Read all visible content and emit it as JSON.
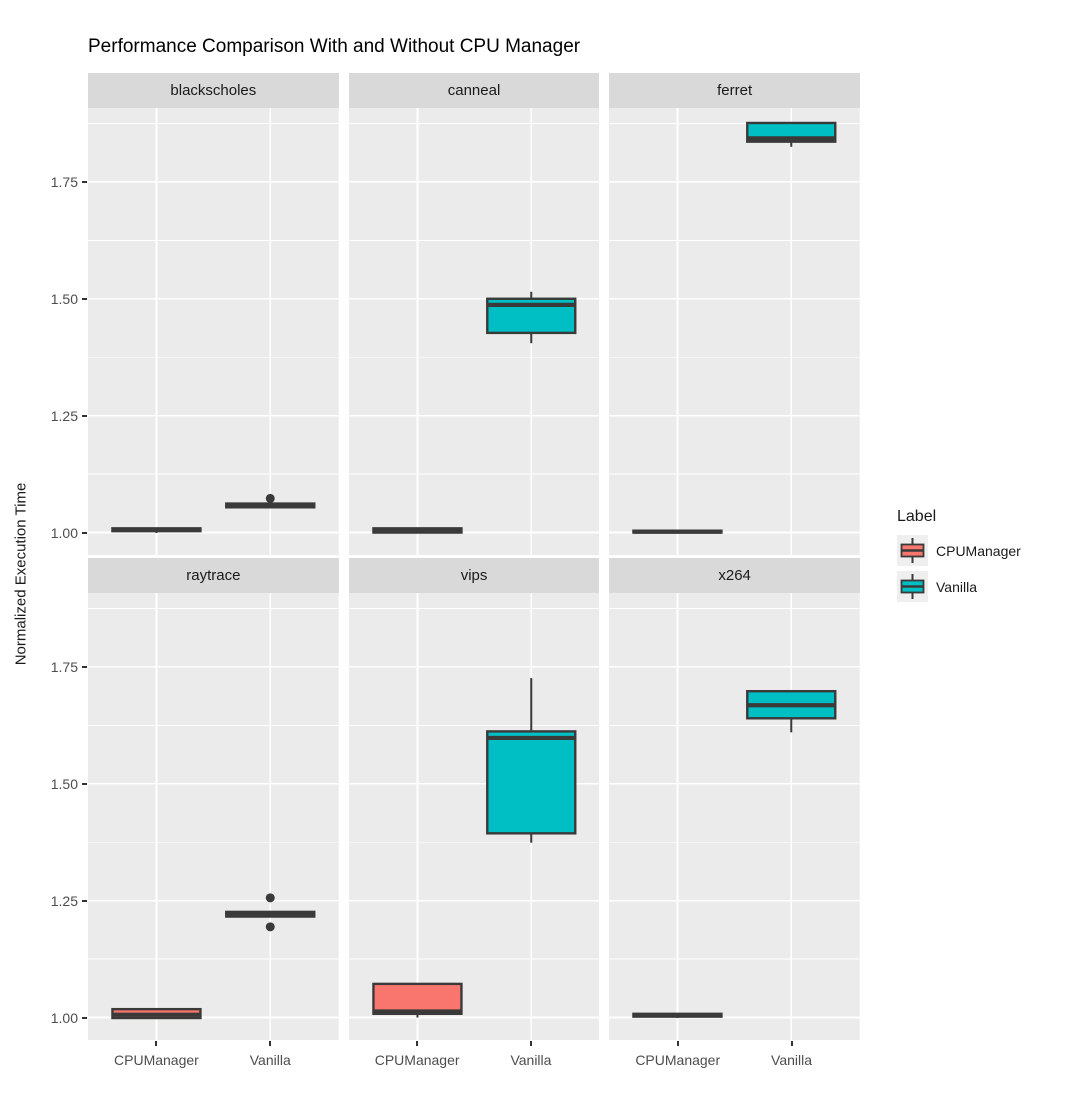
{
  "title": "Performance Comparison With and Without CPU Manager",
  "axes": {
    "y_label": "Normalized Execution Time",
    "y_ticks": [
      "1.00",
      "1.25",
      "1.50",
      "1.75"
    ],
    "x_categories": [
      "CPUManager",
      "Vanilla"
    ]
  },
  "legend": {
    "title": "Label",
    "items": [
      {
        "label": "CPUManager",
        "color": "#F8766D"
      },
      {
        "label": "Vanilla",
        "color": "#00BFC4"
      }
    ]
  },
  "style": {
    "panel_bg": "#EBEBEB",
    "strip_bg": "#D9D9D9",
    "grid_color": "#FFFFFF",
    "box_stroke": "#3A3A3A",
    "tick_label_color": "#4D4D4D",
    "text_color": "#1A1A1A",
    "legend_key_bg": "#EFEFEF"
  },
  "chart_data": {
    "type": "boxplot",
    "title": "Performance Comparison With and Without CPU Manager",
    "ylabel": "Normalized Execution Time",
    "xlabel": "",
    "facet_layout": {
      "rows": 2,
      "cols": 3
    },
    "legend_position": "right",
    "grid": true,
    "x_categories": [
      "CPUManager",
      "Vanilla"
    ],
    "group_colors": {
      "CPUManager": "#F8766D",
      "Vanilla": "#00BFC4"
    },
    "y_tick_values": [
      1.0,
      1.25,
      1.5,
      1.75
    ],
    "y_minor_values": [
      1.125,
      1.375,
      1.625,
      1.875
    ],
    "ylim": [
      0.952,
      1.908
    ],
    "facets": [
      {
        "name": "blackscholes",
        "boxes": [
          {
            "group": "CPUManager",
            "min": 0.999,
            "q1": 1.003,
            "median": 1.006,
            "q3": 1.009,
            "max": 1.01,
            "outliers": []
          },
          {
            "group": "Vanilla",
            "min": 1.053,
            "q1": 1.054,
            "median": 1.058,
            "q3": 1.062,
            "max": 1.062,
            "outliers": [
              1.073
            ]
          }
        ]
      },
      {
        "name": "canneal",
        "boxes": [
          {
            "group": "CPUManager",
            "min": 0.998,
            "q1": 1.0,
            "median": 1.004,
            "q3": 1.009,
            "max": 1.01,
            "outliers": []
          },
          {
            "group": "Vanilla",
            "min": 1.405,
            "q1": 1.427,
            "median": 1.487,
            "q3": 1.5,
            "max": 1.515,
            "outliers": []
          }
        ]
      },
      {
        "name": "ferret",
        "boxes": [
          {
            "group": "CPUManager",
            "min": 0.998,
            "q1": 1.0,
            "median": 1.002,
            "q3": 1.004,
            "max": 1.005,
            "outliers": []
          },
          {
            "group": "Vanilla",
            "min": 1.825,
            "q1": 1.836,
            "median": 1.843,
            "q3": 1.876,
            "max": 1.876,
            "outliers": []
          }
        ]
      },
      {
        "name": "raytrace",
        "boxes": [
          {
            "group": "CPUManager",
            "min": 0.997,
            "q1": 0.999,
            "median": 1.006,
            "q3": 1.018,
            "max": 1.018,
            "outliers": []
          },
          {
            "group": "Vanilla",
            "min": 1.215,
            "q1": 1.216,
            "median": 1.221,
            "q3": 1.226,
            "max": 1.226,
            "outliers": [
              1.256,
              1.194
            ]
          }
        ]
      },
      {
        "name": "vips",
        "boxes": [
          {
            "group": "CPUManager",
            "min": 1.0,
            "q1": 1.008,
            "median": 1.013,
            "q3": 1.072,
            "max": 1.072,
            "outliers": []
          },
          {
            "group": "Vanilla",
            "min": 1.374,
            "q1": 1.394,
            "median": 1.598,
            "q3": 1.612,
            "max": 1.726,
            "outliers": []
          }
        ]
      },
      {
        "name": "x264",
        "boxes": [
          {
            "group": "CPUManager",
            "min": 0.999,
            "q1": 1.002,
            "median": 1.005,
            "q3": 1.008,
            "max": 1.008,
            "outliers": []
          },
          {
            "group": "Vanilla",
            "min": 1.61,
            "q1": 1.64,
            "median": 1.668,
            "q3": 1.698,
            "max": 1.698,
            "outliers": []
          }
        ]
      }
    ]
  }
}
